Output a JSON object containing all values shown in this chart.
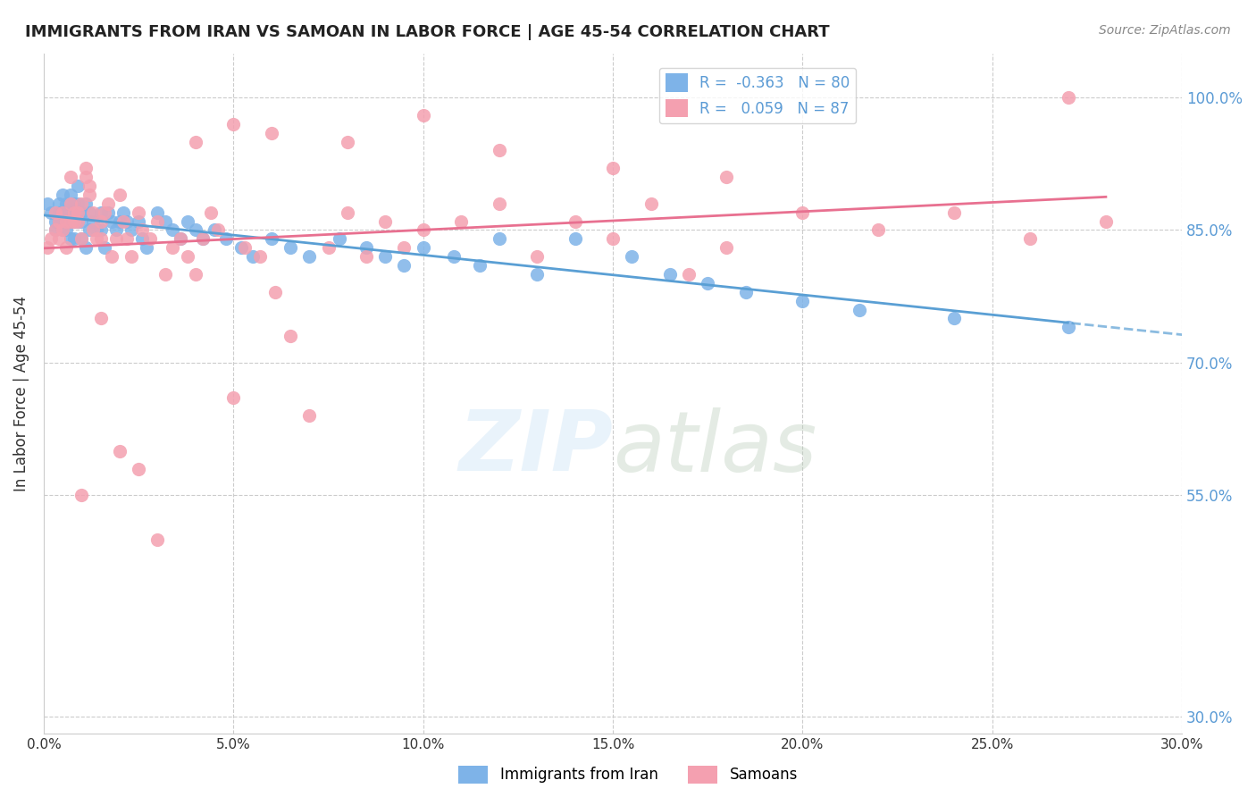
{
  "title": "IMMIGRANTS FROM IRAN VS SAMOAN IN LABOR FORCE | AGE 45-54 CORRELATION CHART",
  "source": "Source: ZipAtlas.com",
  "ylabel": "In Labor Force | Age 45-54",
  "ytick_labels": [
    "100.0%",
    "85.0%",
    "70.0%",
    "55.0%",
    "30.0%"
  ],
  "ytick_values": [
    1.0,
    0.85,
    0.7,
    0.55,
    0.3
  ],
  "iran_color": "#7eb3e8",
  "samoan_color": "#f4a0b0",
  "iran_line_color": "#5a9fd4",
  "samoan_line_color": "#e87090",
  "background_color": "#ffffff",
  "title_color": "#222222",
  "right_axis_color": "#5b9bd5",
  "xlim": [
    0.0,
    0.3
  ],
  "ylim": [
    0.28,
    1.05
  ],
  "iran_scatter_x": [
    0.001,
    0.002,
    0.003,
    0.003,
    0.004,
    0.004,
    0.004,
    0.005,
    0.005,
    0.005,
    0.005,
    0.006,
    0.006,
    0.006,
    0.006,
    0.007,
    0.007,
    0.007,
    0.007,
    0.008,
    0.008,
    0.008,
    0.008,
    0.009,
    0.009,
    0.009,
    0.01,
    0.01,
    0.01,
    0.011,
    0.011,
    0.012,
    0.012,
    0.013,
    0.014,
    0.015,
    0.015,
    0.016,
    0.017,
    0.018,
    0.019,
    0.02,
    0.021,
    0.022,
    0.023,
    0.025,
    0.026,
    0.027,
    0.03,
    0.032,
    0.034,
    0.036,
    0.038,
    0.04,
    0.042,
    0.045,
    0.048,
    0.052,
    0.055,
    0.06,
    0.065,
    0.07,
    0.078,
    0.085,
    0.09,
    0.095,
    0.1,
    0.108,
    0.115,
    0.12,
    0.13,
    0.14,
    0.155,
    0.165,
    0.175,
    0.185,
    0.2,
    0.215,
    0.24,
    0.27
  ],
  "iran_scatter_y": [
    0.88,
    0.87,
    0.86,
    0.85,
    0.88,
    0.87,
    0.86,
    0.89,
    0.87,
    0.86,
    0.85,
    0.88,
    0.87,
    0.86,
    0.85,
    0.89,
    0.88,
    0.86,
    0.84,
    0.88,
    0.87,
    0.86,
    0.84,
    0.9,
    0.88,
    0.86,
    0.87,
    0.86,
    0.84,
    0.88,
    0.83,
    0.87,
    0.85,
    0.86,
    0.85,
    0.87,
    0.85,
    0.83,
    0.87,
    0.86,
    0.85,
    0.86,
    0.87,
    0.86,
    0.85,
    0.86,
    0.84,
    0.83,
    0.87,
    0.86,
    0.85,
    0.84,
    0.86,
    0.85,
    0.84,
    0.85,
    0.84,
    0.83,
    0.82,
    0.84,
    0.83,
    0.82,
    0.84,
    0.83,
    0.82,
    0.81,
    0.83,
    0.82,
    0.81,
    0.84,
    0.8,
    0.84,
    0.82,
    0.8,
    0.79,
    0.78,
    0.77,
    0.76,
    0.75,
    0.74
  ],
  "samoan_scatter_x": [
    0.001,
    0.002,
    0.003,
    0.003,
    0.004,
    0.004,
    0.005,
    0.005,
    0.006,
    0.006,
    0.007,
    0.007,
    0.007,
    0.008,
    0.008,
    0.009,
    0.009,
    0.01,
    0.01,
    0.011,
    0.011,
    0.012,
    0.012,
    0.013,
    0.013,
    0.014,
    0.015,
    0.015,
    0.016,
    0.017,
    0.018,
    0.019,
    0.02,
    0.021,
    0.022,
    0.023,
    0.025,
    0.026,
    0.028,
    0.03,
    0.032,
    0.034,
    0.036,
    0.038,
    0.04,
    0.042,
    0.044,
    0.046,
    0.05,
    0.053,
    0.057,
    0.061,
    0.065,
    0.07,
    0.075,
    0.08,
    0.085,
    0.09,
    0.095,
    0.1,
    0.11,
    0.12,
    0.13,
    0.14,
    0.15,
    0.16,
    0.17,
    0.18,
    0.2,
    0.22,
    0.24,
    0.26,
    0.27,
    0.01,
    0.015,
    0.02,
    0.025,
    0.03,
    0.04,
    0.05,
    0.06,
    0.08,
    0.1,
    0.12,
    0.15,
    0.18,
    0.28
  ],
  "samoan_scatter_y": [
    0.83,
    0.84,
    0.85,
    0.87,
    0.84,
    0.86,
    0.85,
    0.87,
    0.83,
    0.86,
    0.91,
    0.88,
    0.86,
    0.87,
    0.86,
    0.87,
    0.86,
    0.88,
    0.84,
    0.91,
    0.92,
    0.9,
    0.89,
    0.87,
    0.85,
    0.84,
    0.86,
    0.84,
    0.87,
    0.88,
    0.82,
    0.84,
    0.89,
    0.86,
    0.84,
    0.82,
    0.87,
    0.85,
    0.84,
    0.86,
    0.8,
    0.83,
    0.84,
    0.82,
    0.8,
    0.84,
    0.87,
    0.85,
    0.66,
    0.83,
    0.82,
    0.78,
    0.73,
    0.64,
    0.83,
    0.87,
    0.82,
    0.86,
    0.83,
    0.85,
    0.86,
    0.88,
    0.82,
    0.86,
    0.84,
    0.88,
    0.8,
    0.83,
    0.87,
    0.85,
    0.87,
    0.84,
    1.0,
    0.55,
    0.75,
    0.6,
    0.58,
    0.5,
    0.95,
    0.97,
    0.96,
    0.95,
    0.98,
    0.94,
    0.92,
    0.91,
    0.86
  ]
}
